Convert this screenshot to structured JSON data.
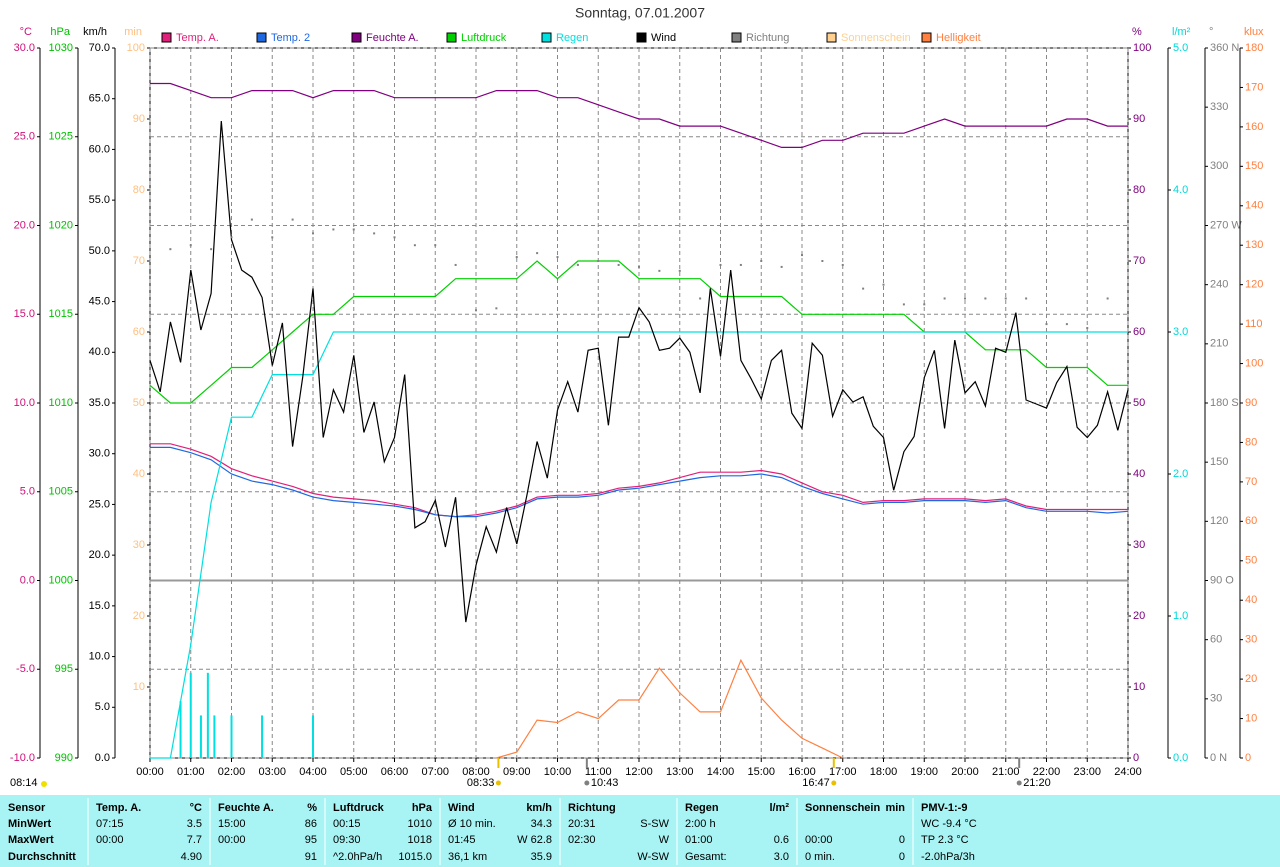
{
  "chart_data": {
    "type": "line",
    "title": "Sonntag, 07.01.2007",
    "xlim": [
      0,
      24
    ],
    "xticks": [
      {
        "value": 0,
        "label": "00:00"
      },
      {
        "value": 1,
        "label": "01:00"
      },
      {
        "value": 2,
        "label": "02:00"
      },
      {
        "value": 3,
        "label": "03:00"
      },
      {
        "value": 4,
        "label": "04:00"
      },
      {
        "value": 5,
        "label": "05:00"
      },
      {
        "value": 6,
        "label": "06:00"
      },
      {
        "value": 7,
        "label": "07:00"
      },
      {
        "value": 8,
        "label": "08:00"
      },
      {
        "value": 9,
        "label": "09:00"
      },
      {
        "value": 10,
        "label": "10:00"
      },
      {
        "value": 11,
        "label": "11:00"
      },
      {
        "value": 12,
        "label": "12:00"
      },
      {
        "value": 13,
        "label": "13:00"
      },
      {
        "value": 14,
        "label": "14:00"
      },
      {
        "value": 15,
        "label": "15:00"
      },
      {
        "value": 16,
        "label": "16:00"
      },
      {
        "value": 17,
        "label": "17:00"
      },
      {
        "value": 18,
        "label": "18:00"
      },
      {
        "value": 19,
        "label": "19:00"
      },
      {
        "value": 20,
        "label": "20:00"
      },
      {
        "value": 21,
        "label": "21:00"
      },
      {
        "value": 22,
        "label": "22:00"
      },
      {
        "value": 23,
        "label": "23:00"
      },
      {
        "value": 24,
        "label": "24:00"
      }
    ],
    "grid": true,
    "grid_axis": "°C",
    "axes": [
      {
        "unit": "°C",
        "side": "left",
        "color": "#d0107a",
        "lim": [
          -10,
          30
        ],
        "ticks": [
          {
            "value": -10,
            "label": "-10.0"
          },
          {
            "value": -5,
            "label": "-5.0"
          },
          {
            "value": 0,
            "label": "0.0"
          },
          {
            "value": 5,
            "label": "5.0"
          },
          {
            "value": 10,
            "label": "10.0"
          },
          {
            "value": 15,
            "label": "15.0"
          },
          {
            "value": 20,
            "label": "20.0"
          },
          {
            "value": 25,
            "label": "25.0"
          },
          {
            "value": 30,
            "label": "30.0"
          }
        ]
      },
      {
        "unit": "hPa",
        "side": "left",
        "color": "#00c000",
        "lim": [
          990,
          1030
        ],
        "ticks": [
          990,
          995,
          1000,
          1005,
          1010,
          1015,
          1020,
          1025,
          1030
        ]
      },
      {
        "unit": "km/h",
        "side": "left",
        "color": "#000000",
        "lim": [
          0,
          70
        ],
        "ticks": [
          {
            "value": 0,
            "label": "0.0"
          },
          {
            "value": 5,
            "label": "5.0"
          },
          {
            "value": 10,
            "label": "10.0"
          },
          {
            "value": 15,
            "label": "15.0"
          },
          {
            "value": 20,
            "label": "20.0"
          },
          {
            "value": 25,
            "label": "25.0"
          },
          {
            "value": 30,
            "label": "30.0"
          },
          {
            "value": 35,
            "label": "35.0"
          },
          {
            "value": 40,
            "label": "40.0"
          },
          {
            "value": 45,
            "label": "45.0"
          },
          {
            "value": 50,
            "label": "50.0"
          },
          {
            "value": 55,
            "label": "55.0"
          },
          {
            "value": 60,
            "label": "60.0"
          },
          {
            "value": 65,
            "label": "65.0"
          },
          {
            "value": 70,
            "label": "70.0"
          }
        ]
      },
      {
        "unit": "min",
        "side": "left",
        "color": "#ffc080",
        "lim": [
          0,
          100
        ],
        "ticks": [
          10,
          20,
          30,
          40,
          50,
          60,
          70,
          80,
          90,
          100
        ]
      },
      {
        "unit": "%",
        "side": "right",
        "color": "#800080",
        "lim": [
          0,
          100
        ],
        "ticks": [
          0,
          10,
          20,
          30,
          40,
          50,
          60,
          70,
          80,
          90,
          100
        ]
      },
      {
        "unit": "l/m²",
        "side": "right",
        "color": "#00d8d8",
        "lim": [
          0,
          5
        ],
        "ticks": [
          {
            "value": 0,
            "label": "0.0"
          },
          {
            "value": 1,
            "label": "1.0"
          },
          {
            "value": 2,
            "label": "2.0"
          },
          {
            "value": 3,
            "label": "3.0"
          },
          {
            "value": 4,
            "label": "4.0"
          },
          {
            "value": 5,
            "label": "5.0"
          }
        ]
      },
      {
        "unit": "°",
        "side": "right",
        "color": "#808080",
        "lim": [
          0,
          360
        ],
        "ticks": [
          {
            "value": 0,
            "label": "0 N"
          },
          30,
          60,
          {
            "value": 90,
            "label": "90 O"
          },
          120,
          150,
          {
            "value": 180,
            "label": "180 S"
          },
          210,
          240,
          {
            "value": 270,
            "label": "270 W"
          },
          300,
          330,
          {
            "value": 360,
            "label": "360 N"
          }
        ]
      },
      {
        "unit": "klux",
        "side": "right",
        "color": "#ff8040",
        "lim": [
          0,
          180
        ],
        "ticks": [
          0,
          10,
          20,
          30,
          40,
          50,
          60,
          70,
          80,
          90,
          100,
          110,
          120,
          130,
          140,
          150,
          160,
          170,
          180
        ]
      }
    ],
    "x": [
      0,
      0.5,
      1,
      1.5,
      2,
      2.5,
      3,
      3.5,
      4,
      4.5,
      5,
      5.5,
      6,
      6.5,
      7,
      7.5,
      8,
      8.5,
      9,
      9.5,
      10,
      10.5,
      11,
      11.5,
      12,
      12.5,
      13,
      13.5,
      14,
      14.5,
      15,
      15.5,
      16,
      16.5,
      17,
      17.5,
      18,
      18.5,
      19,
      19.5,
      20,
      20.5,
      21,
      21.5,
      22,
      22.5,
      23,
      23.5,
      24
    ],
    "series": [
      {
        "name": "Temp. A.",
        "color": "#e0207a",
        "axis": "°C",
        "values": [
          7.7,
          7.7,
          7.4,
          7.0,
          6.3,
          5.9,
          5.6,
          5.3,
          4.9,
          4.7,
          4.6,
          4.5,
          4.3,
          4.1,
          3.7,
          3.6,
          3.7,
          3.9,
          4.2,
          4.7,
          4.8,
          4.8,
          4.9,
          5.2,
          5.3,
          5.5,
          5.8,
          6.1,
          6.1,
          6.1,
          6.2,
          6.0,
          5.5,
          5.0,
          4.8,
          4.4,
          4.5,
          4.5,
          4.6,
          4.6,
          4.6,
          4.5,
          4.6,
          4.2,
          4.0,
          4.0,
          4.0,
          4.0,
          4.0
        ]
      },
      {
        "name": "Temp. 2",
        "color": "#2068e0",
        "axis": "°C",
        "values": [
          7.5,
          7.5,
          7.2,
          6.8,
          6.0,
          5.6,
          5.4,
          5.1,
          4.7,
          4.5,
          4.4,
          4.3,
          4.2,
          4.0,
          3.7,
          3.6,
          3.6,
          3.8,
          4.1,
          4.6,
          4.7,
          4.7,
          4.8,
          5.1,
          5.2,
          5.4,
          5.6,
          5.8,
          5.9,
          5.9,
          6.0,
          5.8,
          5.3,
          4.9,
          4.6,
          4.3,
          4.4,
          4.4,
          4.5,
          4.5,
          4.5,
          4.4,
          4.5,
          4.1,
          3.9,
          3.9,
          3.9,
          3.8,
          3.9
        ]
      },
      {
        "name": "Feuchte A.",
        "color": "#800080",
        "axis": "%",
        "values": [
          95,
          95,
          94,
          93,
          93,
          94,
          94,
          94,
          93,
          94,
          94,
          94,
          93,
          93,
          93,
          93,
          93,
          94,
          94,
          94,
          93,
          93,
          92,
          91,
          90,
          90,
          89,
          89,
          89,
          88,
          87,
          86,
          86,
          87,
          87,
          88,
          88,
          88,
          89,
          90,
          89,
          89,
          89,
          89,
          89,
          90,
          90,
          89,
          89
        ]
      },
      {
        "name": "Luftdruck",
        "color": "#00d000",
        "axis": "hPa",
        "values": [
          1011,
          1010,
          1010,
          1011,
          1012,
          1012,
          1013,
          1014,
          1015,
          1015,
          1016,
          1016,
          1016,
          1016,
          1016,
          1017,
          1017,
          1017,
          1017,
          1018,
          1017,
          1018,
          1018,
          1018,
          1017,
          1017,
          1017,
          1017,
          1016,
          1016,
          1016,
          1016,
          1015,
          1015,
          1015,
          1015,
          1015,
          1015,
          1014,
          1014,
          1014,
          1013,
          1013,
          1013,
          1012,
          1012,
          1012,
          1011,
          1011
        ]
      },
      {
        "name": "Regen",
        "color": "#00e0e0",
        "axis": "l/m²",
        "values": [
          0,
          0,
          0.8,
          1.8,
          2.4,
          2.4,
          2.7,
          2.7,
          2.7,
          3.0,
          3.0,
          3.0,
          3.0,
          3.0,
          3.0,
          3.0,
          3.0,
          3.0,
          3.0,
          3.0,
          3.0,
          3.0,
          3.0,
          3.0,
          3.0,
          3.0,
          3.0,
          3.0,
          3.0,
          3.0,
          3.0,
          3.0,
          3.0,
          3.0,
          3.0,
          3.0,
          3.0,
          3.0,
          3.0,
          3.0,
          3.0,
          3.0,
          3.0,
          3.0,
          3.0,
          3.0,
          3.0,
          3.0,
          3.0
        ],
        "bar_x": [
          0.75,
          1.0,
          1.25,
          1.42,
          1.58,
          2.0,
          2.75,
          4.0
        ],
        "bar_values": [
          0.4,
          0.6,
          0.3,
          0.6,
          0.3,
          0.3,
          0.3,
          0.3
        ]
      },
      {
        "name": "Wind",
        "color": "#000000",
        "axis": "km/h",
        "x": [
          0,
          0.25,
          0.5,
          0.75,
          1,
          1.25,
          1.5,
          1.75,
          2,
          2.25,
          2.5,
          2.75,
          3,
          3.25,
          3.5,
          3.75,
          4,
          4.25,
          4.5,
          4.75,
          5,
          5.25,
          5.5,
          5.75,
          6,
          6.25,
          6.5,
          6.75,
          7,
          7.25,
          7.5,
          7.75,
          8,
          8.25,
          8.5,
          8.75,
          9,
          9.25,
          9.5,
          9.75,
          10,
          10.25,
          10.5,
          10.75,
          11,
          11.25,
          11.5,
          11.75,
          12,
          12.25,
          12.5,
          12.75,
          13,
          13.25,
          13.5,
          13.75,
          14,
          14.25,
          14.5,
          14.75,
          15,
          15.25,
          15.5,
          15.75,
          16,
          16.25,
          16.5,
          16.75,
          17,
          17.25,
          17.5,
          17.75,
          18,
          18.25,
          18.5,
          18.75,
          19,
          19.25,
          19.5,
          19.75,
          20,
          20.25,
          20.5,
          20.75,
          21,
          21.25,
          21.5,
          21.75,
          22,
          22.25,
          22.5,
          22.75,
          23,
          23.25,
          23.5,
          23.75,
          24
        ],
        "values": [
          39.2,
          36.1,
          43.0,
          39.0,
          48.1,
          42.2,
          45.8,
          62.8,
          51.1,
          48.1,
          47.4,
          45.4,
          38.7,
          42.9,
          30.7,
          37.6,
          46.3,
          31.6,
          36.3,
          34.1,
          39.7,
          32.1,
          35.1,
          29.2,
          31.6,
          37.8,
          22.7,
          23.3,
          25.4,
          20.8,
          25.7,
          13.4,
          19.0,
          22.8,
          20.3,
          24.7,
          21.1,
          25.9,
          31.2,
          27.6,
          34.3,
          37.1,
          34.1,
          40.2,
          40.4,
          32.8,
          41.5,
          41.5,
          44.4,
          43.0,
          40.2,
          40.4,
          41.4,
          40.0,
          36.0,
          46.3,
          39.6,
          48.1,
          39.2,
          37.4,
          35.4,
          39.2,
          40.2,
          34.0,
          32.5,
          40.9,
          39.7,
          33.7,
          36.3,
          35.1,
          35.6,
          32.7,
          31.6,
          26.4,
          30.2,
          31.7,
          37.5,
          40.2,
          32.5,
          41.2,
          36.0,
          37.1,
          34.7,
          40.4,
          40.0,
          43.9,
          35.3,
          34.9,
          34.5,
          37.0,
          38.6,
          32.6,
          31.6,
          32.8,
          36.1,
          32.3,
          36.3
        ]
      },
      {
        "name": "Richtung",
        "color": "#808080",
        "axis": "°",
        "style": "points",
        "values": [
          246,
          258,
          260,
          258,
          264,
          273,
          264,
          273,
          266,
          268,
          268,
          266,
          264,
          260,
          260,
          250,
          227,
          228,
          254,
          256,
          254,
          250,
          252,
          250,
          249,
          247,
          247,
          233,
          250,
          250,
          252,
          249,
          255,
          252,
          250,
          238,
          240,
          230,
          230,
          233,
          233,
          233,
          233,
          233,
          220,
          220,
          218,
          233,
          223
        ]
      },
      {
        "name": "Sonnenschein",
        "color": "#ffd090"
      },
      {
        "name": "Helligkeit",
        "color": "#ff8040",
        "axis": "klux",
        "values": [
          null,
          null,
          null,
          null,
          null,
          null,
          null,
          null,
          null,
          null,
          null,
          null,
          null,
          null,
          null,
          null,
          null,
          0,
          1.5,
          9.6,
          9.0,
          11.7,
          10.0,
          14.7,
          14.7,
          22.8,
          16.5,
          11.7,
          11.7,
          24.8,
          15.2,
          9.6,
          5.0,
          2.5,
          0,
          null,
          null,
          null,
          null,
          null,
          null,
          null,
          null,
          null,
          null,
          null,
          null,
          null,
          null
        ]
      }
    ],
    "sunrise_label": "08:14",
    "annotations": [
      {
        "value": 8.55,
        "label": "08:33",
        "color": "#e8c000",
        "side": "left"
      },
      {
        "value": 10.72,
        "label": "10:43",
        "color": "#808080",
        "side": "right"
      },
      {
        "value": 16.78,
        "label": "16:47",
        "color": "#e8c000",
        "side": "left"
      },
      {
        "value": 21.33,
        "label": "21:20",
        "color": "#808080",
        "side": "right"
      }
    ]
  },
  "table": {
    "row_labels": [
      "Sensor",
      "MinWert",
      "MaxWert",
      "Durchschnitt"
    ],
    "groups": [
      {
        "title": "Temp. A.",
        "unit": "°C",
        "rows": [
          [
            "07:15",
            "3.5"
          ],
          [
            "00:00",
            "7.7"
          ],
          [
            null,
            "4.90"
          ]
        ]
      },
      {
        "title": "Feuchte A.",
        "unit": "%",
        "rows": [
          [
            "15:00",
            "86"
          ],
          [
            "00:00",
            "95"
          ],
          [
            null,
            "91"
          ]
        ]
      },
      {
        "title": "Luftdruck",
        "unit": "hPa",
        "rows": [
          [
            "00:15",
            "1010"
          ],
          [
            "09:30",
            "1018"
          ],
          [
            "^2.0hPa/h",
            "1015.0"
          ]
        ]
      },
      {
        "title": "Wind",
        "unit": "km/h",
        "rows": [
          [
            "Ø 10 min.",
            "34.3"
          ],
          [
            "01:45",
            "W 62.8"
          ],
          [
            "36,1 km",
            "35.9"
          ]
        ]
      },
      {
        "title": "Richtung",
        "rows": [
          [
            "20:31",
            "S-SW"
          ],
          [
            "02:30",
            "W"
          ],
          [
            null,
            "W-SW"
          ]
        ]
      },
      {
        "title": "Regen",
        "unit": "l/m²",
        "rows": [
          [
            "2:00 h",
            null
          ],
          [
            "01:00",
            "0.6"
          ],
          [
            "Gesamt:",
            "3.0"
          ]
        ]
      },
      {
        "title": "Sonnenschein",
        "unit": "min",
        "rows": [
          [
            null,
            null
          ],
          [
            "00:00",
            "0"
          ],
          [
            "0 min.",
            "0"
          ]
        ]
      },
      {
        "title": "PMV-1:-9",
        "rows": [
          [
            "WC -9.4 °C"
          ],
          [
            "TP 2.3 °C"
          ],
          [
            "-2.0hPa/3h"
          ]
        ]
      }
    ]
  }
}
